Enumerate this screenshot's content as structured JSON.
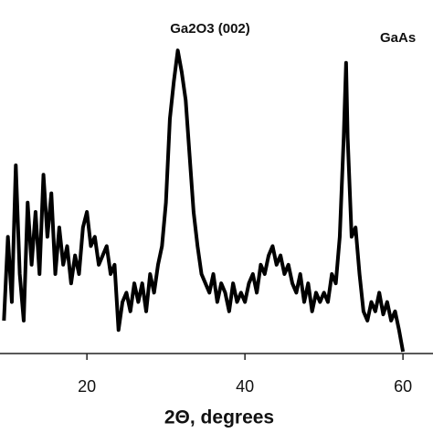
{
  "chart_data": {
    "type": "line",
    "x_label": "2Θ, degrees",
    "annotations": [
      "Ga2O3 (002)",
      "GaAs"
    ],
    "xlim": [
      9,
      63.8
    ],
    "xticks": [
      20,
      40,
      60
    ],
    "ylim": [
      0,
      100
    ],
    "color": "#000000",
    "x": [
      9.5,
      10,
      10.5,
      11,
      11.5,
      12,
      12.5,
      13,
      13.5,
      14,
      14.5,
      15,
      15.5,
      16,
      16.5,
      17,
      17.5,
      18,
      18.5,
      19,
      19.5,
      20,
      20.5,
      21,
      21.5,
      22,
      22.5,
      23,
      23.5,
      24,
      24.5,
      25,
      25.5,
      26,
      26.5,
      27,
      27.5,
      28,
      28.5,
      29,
      29.5,
      30,
      30.5,
      31,
      31.5,
      32,
      32.5,
      33,
      33.5,
      34,
      34.5,
      35,
      35.5,
      36,
      36.5,
      37,
      37.5,
      38,
      38.5,
      39,
      39.5,
      40,
      40.5,
      41,
      41.5,
      42,
      42.5,
      43,
      43.5,
      44,
      44.5,
      45,
      45.5,
      46,
      46.5,
      47,
      47.5,
      48,
      48.5,
      49,
      49.5,
      50,
      50.5,
      51,
      51.5,
      52,
      52.5,
      52.8,
      53,
      53.5,
      54,
      54.5,
      55,
      55.5,
      56,
      56.5,
      57,
      57.5,
      58,
      58.5,
      59,
      59.5,
      60
    ],
    "values": [
      10,
      37,
      16,
      60,
      25,
      10,
      48,
      28,
      45,
      25,
      57,
      37,
      51,
      25,
      40,
      28,
      34,
      22,
      31,
      25,
      40,
      45,
      34,
      37,
      28,
      31,
      34,
      25,
      28,
      7,
      16,
      19,
      13,
      22,
      16,
      22,
      13,
      25,
      19,
      28,
      34,
      48,
      75,
      87,
      97,
      90,
      81,
      63,
      45,
      34,
      25,
      22,
      19,
      25,
      16,
      22,
      19,
      13,
      22,
      16,
      19,
      16,
      22,
      25,
      19,
      28,
      25,
      31,
      34,
      28,
      31,
      25,
      28,
      22,
      19,
      25,
      16,
      22,
      13,
      19,
      16,
      19,
      16,
      25,
      22,
      37,
      69,
      93,
      69,
      37,
      40,
      25,
      13,
      10,
      16,
      13,
      19,
      12,
      16,
      10,
      13,
      7,
      0
    ]
  }
}
